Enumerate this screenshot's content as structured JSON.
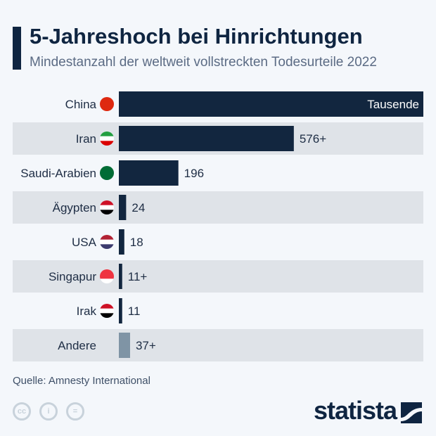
{
  "header": {
    "title": "5-Jahreshoch bei Hinrichtungen",
    "subtitle": "Mindestanzahl der weltweit vollstreckten Todesurteile 2022"
  },
  "footer": {
    "source": "Quelle: Amnesty International",
    "logo": "statista",
    "license_icons": [
      "cc-icon",
      "by-icon",
      "nd-icon"
    ]
  },
  "colors": {
    "bar": "#12263f",
    "other_bar": "#7f94a5",
    "stripe": "#dfe3e8",
    "background": "#f4f7fb"
  },
  "chart_data": {
    "type": "bar",
    "orientation": "horizontal",
    "title": "5-Jahreshoch bei Hinrichtungen",
    "subtitle": "Mindestanzahl der weltweit vollstreckten Todesurteile 2022",
    "categories": [
      "China",
      "Iran",
      "Saudi-Arabien",
      "Ägypten",
      "USA",
      "Singapur",
      "Irak",
      "Andere"
    ],
    "flags": [
      "china-flag-icon",
      "iran-flag-icon",
      "saudi-arabia-flag-icon",
      "egypt-flag-icon",
      "usa-flag-icon",
      "singapore-flag-icon",
      "iraq-flag-icon",
      null
    ],
    "values": [
      null,
      576,
      196,
      24,
      18,
      11,
      11,
      37
    ],
    "labels": [
      "Tausende",
      "576+",
      "196",
      "24",
      "18",
      "11+",
      "11",
      "37+"
    ],
    "grid": false,
    "legend": "none"
  }
}
